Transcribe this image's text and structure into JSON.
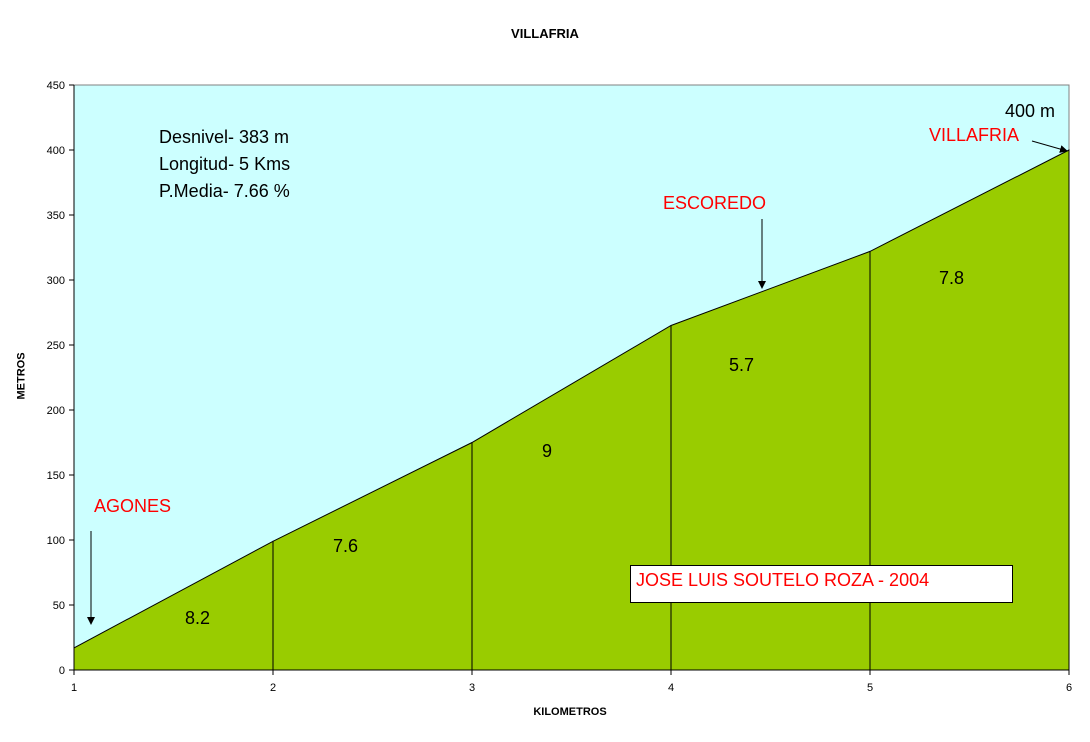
{
  "chart_data": {
    "type": "area",
    "title": "VILLAFRIA",
    "xlabel": "KILOMETROS",
    "ylabel": "METROS",
    "x": [
      1,
      2,
      3,
      4,
      5,
      6
    ],
    "values": [
      17,
      99,
      175,
      265,
      322,
      400
    ],
    "xlim": [
      1,
      6
    ],
    "ylim": [
      0,
      450
    ],
    "x_ticks": [
      "1",
      "2",
      "3",
      "4",
      "5",
      "6"
    ],
    "y_ticks": [
      "0",
      "50",
      "100",
      "150",
      "200",
      "250",
      "300",
      "350",
      "400",
      "450"
    ],
    "segment_gradients": [
      "8.2",
      "7.6",
      "9",
      "5.7",
      "7.8"
    ],
    "info": [
      "Desnivel- 383 m",
      "Longitud- 5 Kms",
      "P.Media- 7.66 %"
    ],
    "annotations": {
      "start": "AGONES",
      "mid": "ESCOREDO",
      "end": "VILLAFRIA",
      "summit": "400 m"
    },
    "credit": "JOSE LUIS SOUTELO ROZA - 2004",
    "colors": {
      "sky": "#ccffff",
      "fill": "#99cc00",
      "annotation": "#ff0000"
    }
  }
}
